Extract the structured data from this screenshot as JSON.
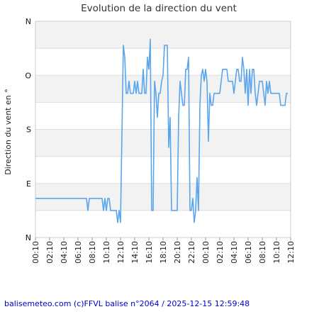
{
  "chart_data": {
    "type": "line",
    "title": "Evolution de la direction du vent",
    "xlabel": "",
    "ylabel": "Direction du vent en °",
    "y_ticks": [
      "N",
      "E",
      "S",
      "O",
      "N"
    ],
    "ylim": [
      0,
      360
    ],
    "x_ticks": [
      "00:10",
      "02:10",
      "04:10",
      "06:10",
      "08:10",
      "10:10",
      "12:10",
      "14:10",
      "16:10",
      "18:10",
      "20:10",
      "22:10",
      "00:10",
      "02:10",
      "04:10",
      "06:10",
      "08:10",
      "10:10",
      "12:10"
    ],
    "grid": true,
    "grid_bands": true,
    "series": [
      {
        "color": "#5aa5ee",
        "points": [
          [
            0,
            65
          ],
          [
            10,
            65
          ],
          [
            20,
            65
          ],
          [
            30,
            65
          ],
          [
            40,
            65
          ],
          [
            50,
            65
          ],
          [
            60,
            65
          ],
          [
            70,
            65
          ],
          [
            80,
            65
          ],
          [
            90,
            65
          ],
          [
            100,
            65
          ],
          [
            110,
            65
          ],
          [
            120,
            65
          ],
          [
            130,
            65
          ],
          [
            140,
            65
          ],
          [
            150,
            65
          ],
          [
            160,
            65
          ],
          [
            170,
            65
          ],
          [
            180,
            65
          ],
          [
            190,
            65
          ],
          [
            200,
            65
          ],
          [
            210,
            65
          ],
          [
            220,
            65
          ],
          [
            230,
            65
          ],
          [
            240,
            65
          ],
          [
            250,
            65
          ],
          [
            260,
            65
          ],
          [
            270,
            65
          ],
          [
            280,
            65
          ],
          [
            290,
            65
          ],
          [
            300,
            65
          ],
          [
            310,
            65
          ],
          [
            320,
            65
          ],
          [
            330,
            65
          ],
          [
            340,
            65
          ],
          [
            350,
            65
          ],
          [
            360,
            65
          ],
          [
            370,
            45
          ],
          [
            380,
            65
          ],
          [
            390,
            65
          ],
          [
            400,
            65
          ],
          [
            410,
            65
          ],
          [
            420,
            65
          ],
          [
            430,
            65
          ],
          [
            440,
            65
          ],
          [
            450,
            65
          ],
          [
            460,
            65
          ],
          [
            470,
            65
          ],
          [
            480,
            45
          ],
          [
            490,
            65
          ],
          [
            500,
            45
          ],
          [
            510,
            65
          ],
          [
            520,
            65
          ],
          [
            530,
            45
          ],
          [
            540,
            45
          ],
          [
            550,
            45
          ],
          [
            560,
            45
          ],
          [
            570,
            45
          ],
          [
            580,
            25
          ],
          [
            590,
            45
          ],
          [
            600,
            25
          ],
          [
            620,
            320
          ],
          [
            630,
            300
          ],
          [
            640,
            240
          ],
          [
            650,
            240
          ],
          [
            660,
            260
          ],
          [
            670,
            240
          ],
          [
            680,
            240
          ],
          [
            690,
            240
          ],
          [
            700,
            260
          ],
          [
            710,
            240
          ],
          [
            720,
            260
          ],
          [
            730,
            240
          ],
          [
            740,
            240
          ],
          [
            750,
            240
          ],
          [
            760,
            280
          ],
          [
            770,
            240
          ],
          [
            780,
            240
          ],
          [
            790,
            300
          ],
          [
            800,
            280
          ],
          [
            810,
            330
          ],
          [
            820,
            45
          ],
          [
            830,
            45
          ],
          [
            840,
            260
          ],
          [
            850,
            240
          ],
          [
            860,
            200
          ],
          [
            870,
            240
          ],
          [
            880,
            240
          ],
          [
            890,
            260
          ],
          [
            900,
            270
          ],
          [
            910,
            320
          ],
          [
            920,
            320
          ],
          [
            930,
            320
          ],
          [
            940,
            150
          ],
          [
            950,
            200
          ],
          [
            960,
            45
          ],
          [
            970,
            45
          ],
          [
            980,
            45
          ],
          [
            990,
            45
          ],
          [
            1000,
            45
          ],
          [
            1010,
            200
          ],
          [
            1020,
            260
          ],
          [
            1030,
            240
          ],
          [
            1040,
            220
          ],
          [
            1050,
            220
          ],
          [
            1060,
            280
          ],
          [
            1070,
            280
          ],
          [
            1080,
            300
          ],
          [
            1090,
            45
          ],
          [
            1100,
            45
          ],
          [
            1110,
            65
          ],
          [
            1120,
            25
          ],
          [
            1130,
            45
          ],
          [
            1140,
            100
          ],
          [
            1150,
            45
          ],
          [
            1160,
            220
          ],
          [
            1170,
            270
          ],
          [
            1180,
            280
          ],
          [
            1190,
            260
          ],
          [
            1200,
            280
          ],
          [
            1210,
            260
          ],
          [
            1220,
            160
          ],
          [
            1230,
            240
          ],
          [
            1240,
            220
          ],
          [
            1250,
            220
          ],
          [
            1260,
            240
          ],
          [
            1270,
            240
          ],
          [
            1280,
            240
          ],
          [
            1290,
            240
          ],
          [
            1300,
            240
          ],
          [
            1310,
            260
          ],
          [
            1320,
            280
          ],
          [
            1330,
            280
          ],
          [
            1340,
            280
          ],
          [
            1350,
            280
          ],
          [
            1360,
            260
          ],
          [
            1370,
            260
          ],
          [
            1380,
            260
          ],
          [
            1390,
            260
          ],
          [
            1400,
            240
          ],
          [
            1410,
            260
          ],
          [
            1420,
            280
          ],
          [
            1430,
            280
          ],
          [
            1440,
            260
          ],
          [
            1450,
            260
          ],
          [
            1460,
            300
          ],
          [
            1470,
            280
          ],
          [
            1480,
            240
          ],
          [
            1490,
            280
          ],
          [
            1500,
            220
          ],
          [
            1510,
            280
          ],
          [
            1520,
            240
          ],
          [
            1530,
            280
          ],
          [
            1540,
            280
          ],
          [
            1550,
            240
          ],
          [
            1560,
            220
          ],
          [
            1570,
            240
          ],
          [
            1580,
            260
          ],
          [
            1590,
            260
          ],
          [
            1600,
            260
          ],
          [
            1610,
            240
          ],
          [
            1620,
            220
          ],
          [
            1630,
            260
          ],
          [
            1640,
            240
          ],
          [
            1650,
            260
          ],
          [
            1660,
            240
          ],
          [
            1670,
            240
          ],
          [
            1680,
            240
          ],
          [
            1690,
            240
          ],
          [
            1700,
            240
          ],
          [
            1710,
            240
          ],
          [
            1720,
            240
          ],
          [
            1730,
            220
          ],
          [
            1740,
            220
          ],
          [
            1750,
            220
          ],
          [
            1760,
            220
          ],
          [
            1770,
            240
          ],
          [
            1780,
            240
          ]
        ]
      }
    ]
  },
  "footer": {
    "text": "balisemeteo.com (c)FFVL balise n°2064 / 2025-12-15 12:59:48"
  }
}
